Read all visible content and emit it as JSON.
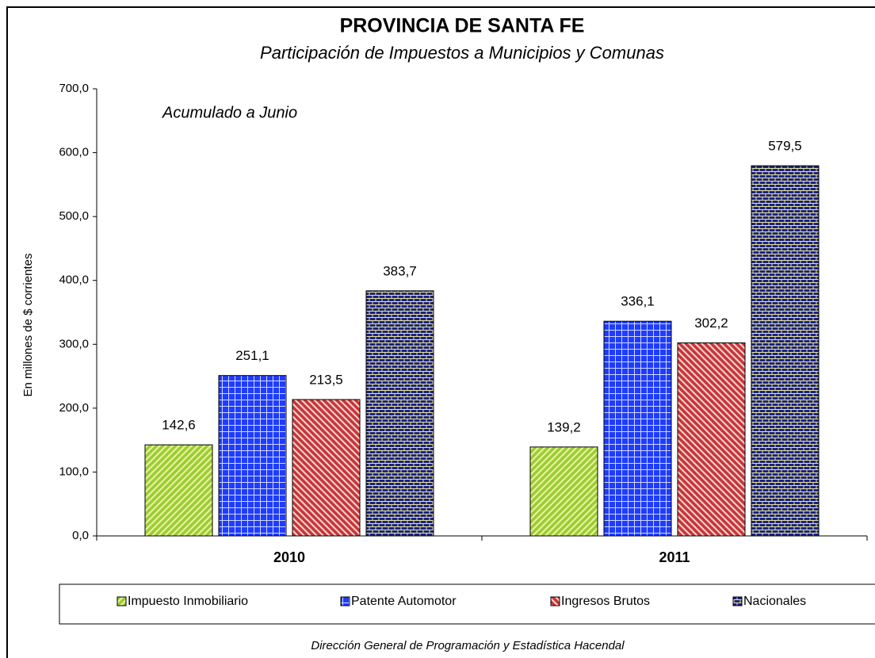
{
  "chart_data": {
    "type": "bar",
    "title": "PROVINCIA DE SANTA FE",
    "subtitle": "Participación de Impuestos a Municipios y Comunas",
    "annotation": "Acumulado a Junio",
    "y_label": "En millones de $ corrientes",
    "source": "Dirección General de Programación y Estadística Hacendal",
    "categories": [
      "2010",
      "2011"
    ],
    "series": [
      {
        "name": "Impuesto Inmobiliario",
        "color": "#9acd32",
        "values": [
          142.6,
          139.2
        ],
        "value_labels": [
          "142,6",
          "139,2"
        ]
      },
      {
        "name": "Patente Automotor",
        "color": "#1f3cff",
        "values": [
          251.1,
          336.1
        ],
        "value_labels": [
          "251,1",
          "336,1"
        ]
      },
      {
        "name": "Ingresos Brutos",
        "color": "#c8343a",
        "values": [
          213.5,
          302.2
        ],
        "value_labels": [
          "213,5",
          "302,2"
        ]
      },
      {
        "name": "Nacionales",
        "color": "#1c237a",
        "values": [
          383.7,
          579.5
        ],
        "value_labels": [
          "383,7",
          "579,5"
        ]
      }
    ],
    "ylim": [
      0,
      700
    ],
    "yticks": [
      {
        "value": 0,
        "label": "0,0"
      },
      {
        "value": 100,
        "label": "100,0"
      },
      {
        "value": 200,
        "label": "200,0"
      },
      {
        "value": 300,
        "label": "300,0"
      },
      {
        "value": 400,
        "label": "400,0"
      },
      {
        "value": 500,
        "label": "500,0"
      },
      {
        "value": 600,
        "label": "600,0"
      },
      {
        "value": 700,
        "label": "700,0"
      }
    ],
    "legend": "bottom"
  }
}
